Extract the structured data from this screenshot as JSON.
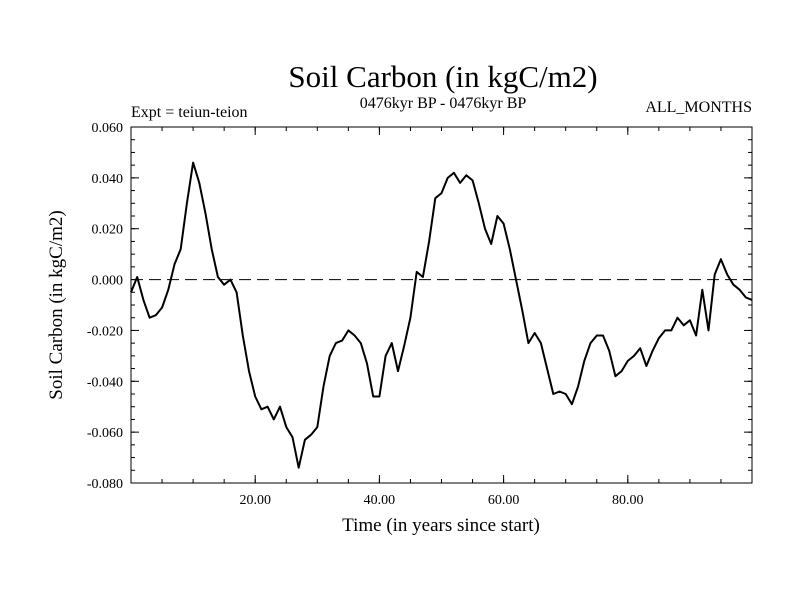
{
  "chart_data": {
    "type": "line",
    "title": "Soil Carbon (in kgC/m2)",
    "subtitle": "0476kyr BP - 0476kyr BP",
    "left_note": "Expt = teiun-teion",
    "right_note": "ALL_MONTHS",
    "xlabel": "Time (in years since start)",
    "ylabel": "Soil Carbon (in kgC/m2)",
    "xlim": [
      0,
      100
    ],
    "ylim": [
      -0.08,
      0.06
    ],
    "x_ticks": [
      20,
      40,
      60,
      80
    ],
    "x_tick_labels": [
      "20.00",
      "40.00",
      "60.00",
      "80.00"
    ],
    "y_ticks": [
      0.06,
      0.04,
      0.02,
      0.0,
      -0.02,
      -0.04,
      -0.06,
      -0.08
    ],
    "y_tick_labels": [
      "0.060",
      "0.040",
      "0.020",
      "0.000",
      "-0.020",
      "-0.040",
      "-0.060",
      "-0.080"
    ],
    "reference_line": {
      "y": 0.0,
      "style": "dashed"
    },
    "series": [
      {
        "name": "Soil Carbon",
        "x": [
          0,
          1,
          2,
          3,
          4,
          5,
          6,
          7,
          8,
          9,
          10,
          11,
          12,
          13,
          14,
          15,
          16,
          17,
          18,
          19,
          20,
          21,
          22,
          23,
          24,
          25,
          26,
          27,
          28,
          29,
          30,
          31,
          32,
          33,
          34,
          35,
          36,
          37,
          38,
          39,
          40,
          41,
          42,
          43,
          44,
          45,
          46,
          47,
          48,
          49,
          50,
          51,
          52,
          53,
          54,
          55,
          56,
          57,
          58,
          59,
          60,
          61,
          62,
          63,
          64,
          65,
          66,
          67,
          68,
          69,
          70,
          71,
          72,
          73,
          74,
          75,
          76,
          77,
          78,
          79,
          80,
          81,
          82,
          83,
          84,
          85,
          86,
          87,
          88,
          89,
          90,
          91,
          92,
          93,
          94,
          95,
          96,
          97,
          98,
          99,
          100
        ],
        "values": [
          -0.005,
          0.001,
          -0.008,
          -0.015,
          -0.014,
          -0.011,
          -0.004,
          0.006,
          0.012,
          0.03,
          0.046,
          0.038,
          0.026,
          0.012,
          0.001,
          -0.002,
          0.0,
          -0.005,
          -0.022,
          -0.036,
          -0.046,
          -0.051,
          -0.05,
          -0.055,
          -0.05,
          -0.058,
          -0.062,
          -0.074,
          -0.063,
          -0.061,
          -0.058,
          -0.042,
          -0.03,
          -0.025,
          -0.024,
          -0.02,
          -0.022,
          -0.025,
          -0.033,
          -0.046,
          -0.046,
          -0.03,
          -0.025,
          -0.036,
          -0.026,
          -0.015,
          0.003,
          0.001,
          0.015,
          0.032,
          0.034,
          0.04,
          0.042,
          0.038,
          0.041,
          0.039,
          0.03,
          0.02,
          0.014,
          0.025,
          0.022,
          0.012,
          0.0,
          -0.012,
          -0.025,
          -0.021,
          -0.025,
          -0.035,
          -0.045,
          -0.044,
          -0.045,
          -0.049,
          -0.042,
          -0.032,
          -0.025,
          -0.022,
          -0.022,
          -0.028,
          -0.038,
          -0.036,
          -0.032,
          -0.03,
          -0.027,
          -0.034,
          -0.028,
          -0.023,
          -0.02,
          -0.02,
          -0.015,
          -0.018,
          -0.016,
          -0.022,
          -0.004,
          -0.02,
          0.002,
          0.008,
          0.002,
          -0.002,
          -0.004,
          -0.007,
          -0.008
        ]
      }
    ]
  }
}
